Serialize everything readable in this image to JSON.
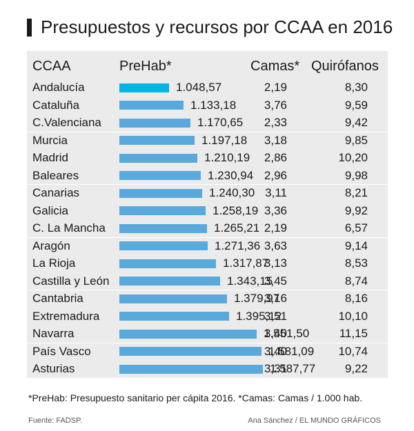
{
  "title": "Presupuestos y recursos por CCAA en 2016",
  "colors": {
    "bar": "#5aa9dd",
    "highlight": "#00b4e6",
    "table_bg": "#ebebeb",
    "title_bar": "#1a1a1a"
  },
  "columns": {
    "region": "CCAA",
    "prehab": "PreHab*",
    "camas": "Camas*",
    "quirofanos": "Quirófanos"
  },
  "chart_data": {
    "type": "table",
    "title": "Presupuestos y recursos por CCAA en 2016",
    "columns": [
      "CCAA",
      "PreHab*",
      "Camas*",
      "Quirófanos"
    ],
    "rows": [
      {
        "region": "Andalucía",
        "prehab": 1048.57,
        "prehab_label": "1.048,57",
        "camas": "2,19",
        "quirofanos": "8,30"
      },
      {
        "region": "Cataluña",
        "prehab": 1133.18,
        "prehab_label": "1.133,18",
        "camas": "3,76",
        "quirofanos": "9,59"
      },
      {
        "region": "C.Valenciana",
        "prehab": 1170.65,
        "prehab_label": "1.170,65",
        "camas": "2,33",
        "quirofanos": "9,42"
      },
      {
        "region": "Murcia",
        "prehab": 1197.18,
        "prehab_label": "1.197,18",
        "camas": "3,18",
        "quirofanos": "9,85"
      },
      {
        "region": "Madrid",
        "prehab": 1210.19,
        "prehab_label": "1.210,19",
        "camas": "2,86",
        "quirofanos": "10,20"
      },
      {
        "region": "Baleares",
        "prehab": 1230.94,
        "prehab_label": "1.230,94",
        "camas": "2,96",
        "quirofanos": "9,98"
      },
      {
        "region": "Canarias",
        "prehab": 1240.3,
        "prehab_label": "1.240,30",
        "camas": "3,11",
        "quirofanos": "8,21"
      },
      {
        "region": "Galicia",
        "prehab": 1258.19,
        "prehab_label": "1.258,19",
        "camas": "3,36",
        "quirofanos": "9,92"
      },
      {
        "region": "C. La Mancha",
        "prehab": 1265.21,
        "prehab_label": "1.265,21",
        "camas": "2,19",
        "quirofanos": "6,57"
      },
      {
        "region": "Aragón",
        "prehab": 1271.36,
        "prehab_label": "1.271,36",
        "camas": "3,63",
        "quirofanos": "9,14"
      },
      {
        "region": "La Rioja",
        "prehab": 1317.87,
        "prehab_label": "1.317,87",
        "camas": "3,13",
        "quirofanos": "8,53"
      },
      {
        "region": "Castilla y León",
        "prehab": 1343.15,
        "prehab_label": "1.343,15",
        "camas": "3,45",
        "quirofanos": "8,74"
      },
      {
        "region": "Cantabria",
        "prehab": 1379.97,
        "prehab_label": "1.379,97",
        "camas": "3,16",
        "quirofanos": "8,16"
      },
      {
        "region": "Extremadura",
        "prehab": 1395.12,
        "prehab_label": "1.395,12",
        "camas": "3,51",
        "quirofanos": "10,10"
      },
      {
        "region": "Navarra",
        "prehab": 1551.5,
        "prehab_label": "1.551,50",
        "camas": "3,40",
        "quirofanos": "11,15"
      },
      {
        "region": "País Vasco",
        "prehab": 1581.09,
        "prehab_label": "1.581,09",
        "camas": "3,40",
        "quirofanos": "10,74"
      },
      {
        "region": "Asturias",
        "prehab": 1587.77,
        "prehab_label": "1.587,77",
        "camas": "3,31",
        "quirofanos": "9,22"
      }
    ],
    "highlight_row": "Andalucía",
    "row_groups": [
      3,
      3,
      3,
      3,
      3,
      2
    ]
  },
  "footnote": "*PreHab: Presupuesto sanitario per cápita 2016. *Camas: Camas / 1.000 hab.",
  "source": "Fuente: FADSP.",
  "credit": "Ana Sánchez / EL MUNDO GRÁFICOS"
}
